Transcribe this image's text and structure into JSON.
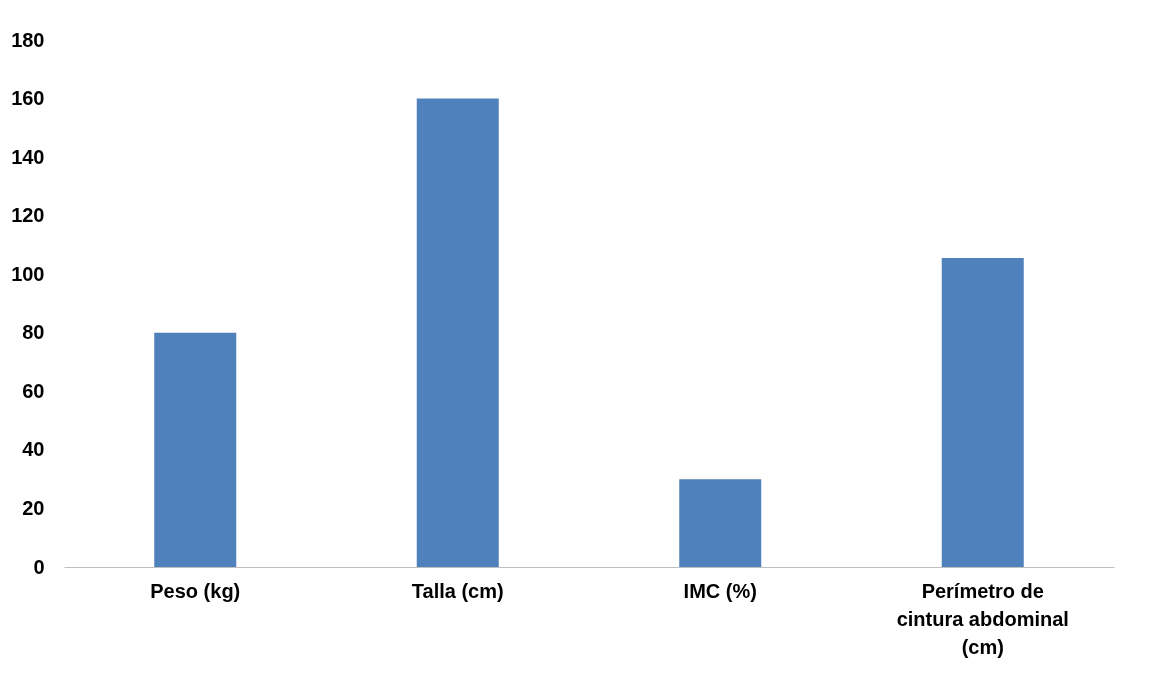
{
  "chart_data": {
    "type": "bar",
    "categories": [
      "Peso (kg)",
      "Talla (cm)",
      "IMC (%)",
      "Perímetro de cintura abdominal (cm)"
    ],
    "values": [
      80,
      160,
      30,
      105.5
    ],
    "color": "#4f81bd",
    "ylim": [
      0,
      180
    ],
    "yticks": [
      0,
      20,
      40,
      60,
      80,
      100,
      120,
      140,
      160,
      180
    ],
    "grid": false
  }
}
